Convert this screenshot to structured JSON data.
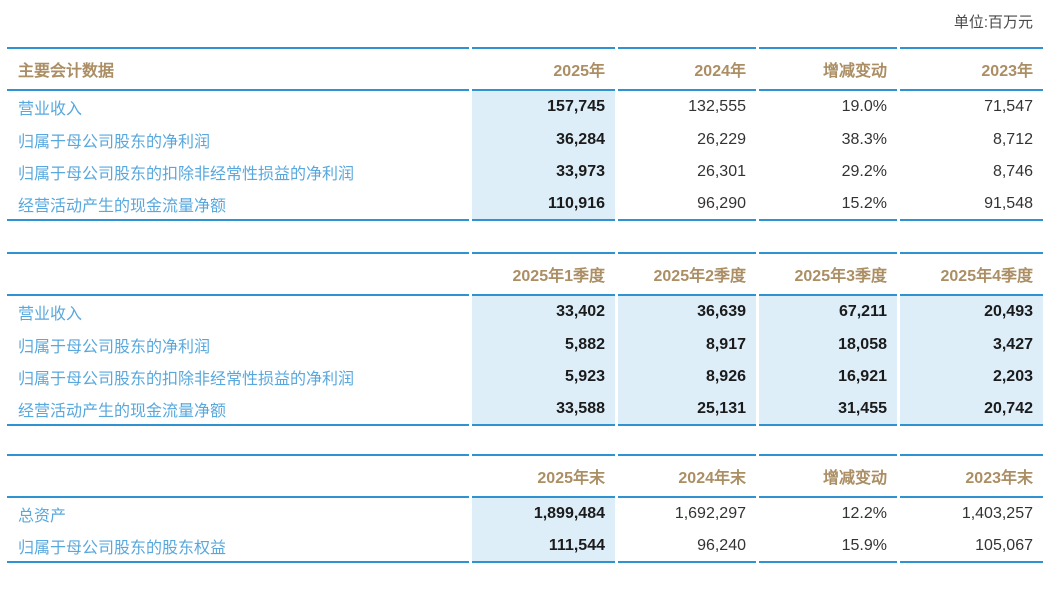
{
  "unit_label": "单位:百万元",
  "colors": {
    "rule_blue": "#2e93d0",
    "label_blue": "#58a8de",
    "header_tan": "#ab8e63",
    "highlight_bg": "#ddeef9",
    "number_dark": "#333333",
    "number_bold": "#1b1b1b",
    "unit_gray": "#4a4a4a"
  },
  "tables": [
    {
      "label_header": "主要会计数据",
      "columns": [
        {
          "label": "2025年",
          "highlighted": true
        },
        {
          "label": "2024年",
          "highlighted": false
        },
        {
          "label": "增减变动",
          "highlighted": false
        },
        {
          "label": "2023年",
          "highlighted": false
        }
      ],
      "rows": [
        {
          "label": "营业收入",
          "values": [
            "157,745",
            "132,555",
            "19.0%",
            "71,547"
          ]
        },
        {
          "label": "归属于母公司股东的净利润",
          "values": [
            "36,284",
            "26,229",
            "38.3%",
            "8,712"
          ]
        },
        {
          "label": "归属于母公司股东的扣除非经常性损益的净利润",
          "values": [
            "33,973",
            "26,301",
            "29.2%",
            "8,746"
          ]
        },
        {
          "label": "经营活动产生的现金流量净额",
          "values": [
            "110,916",
            "96,290",
            "15.2%",
            "91,548"
          ]
        }
      ]
    },
    {
      "label_header": "",
      "columns": [
        {
          "label": "2025年1季度",
          "highlighted": true
        },
        {
          "label": "2025年2季度",
          "highlighted": true
        },
        {
          "label": "2025年3季度",
          "highlighted": true
        },
        {
          "label": "2025年4季度",
          "highlighted": true
        }
      ],
      "rows": [
        {
          "label": "营业收入",
          "values": [
            "33,402",
            "36,639",
            "67,211",
            "20,493"
          ]
        },
        {
          "label": "归属于母公司股东的净利润",
          "values": [
            "5,882",
            "8,917",
            "18,058",
            "3,427"
          ]
        },
        {
          "label": "归属于母公司股东的扣除非经常性损益的净利润",
          "values": [
            "5,923",
            "8,926",
            "16,921",
            "2,203"
          ]
        },
        {
          "label": "经营活动产生的现金流量净额",
          "values": [
            "33,588",
            "25,131",
            "31,455",
            "20,742"
          ]
        }
      ]
    },
    {
      "label_header": "",
      "columns": [
        {
          "label": "2025年末",
          "highlighted": true
        },
        {
          "label": "2024年末",
          "highlighted": false
        },
        {
          "label": "增减变动",
          "highlighted": false
        },
        {
          "label": "2023年末",
          "highlighted": false
        }
      ],
      "rows": [
        {
          "label": "总资产",
          "values": [
            "1,899,484",
            "1,692,297",
            "12.2%",
            "1,403,257"
          ]
        },
        {
          "label": "归属于母公司股东的股东权益",
          "values": [
            "111,544",
            "96,240",
            "15.9%",
            "105,067"
          ]
        }
      ]
    }
  ]
}
